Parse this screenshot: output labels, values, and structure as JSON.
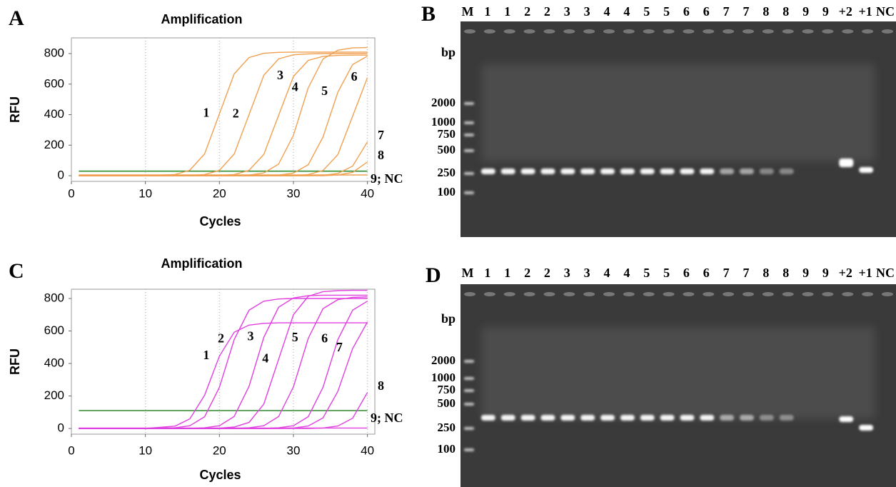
{
  "chart_data": [
    {
      "type": "line",
      "panel": "A",
      "title": "Amplification",
      "xlabel": "Cycles",
      "ylabel": "RFU",
      "x": [
        1,
        10,
        14,
        16,
        18,
        20,
        22,
        24,
        26,
        28,
        30,
        32,
        34,
        36,
        38,
        40
      ],
      "series": [
        {
          "name": "1",
          "color": "#f0a050",
          "values": [
            0,
            0,
            8,
            36,
            143,
            405,
            667,
            774,
            802,
            808,
            810,
            810,
            810,
            810,
            810,
            810
          ]
        },
        {
          "name": "2",
          "color": "#f0a050",
          "values": [
            0,
            0,
            0,
            2,
            8,
            35,
            142,
            400,
            658,
            765,
            792,
            798,
            800,
            800,
            800,
            800
          ]
        },
        {
          "name": "3",
          "color": "#f0a050",
          "values": [
            0,
            0,
            0,
            0,
            0,
            2,
            8,
            35,
            140,
            395,
            650,
            755,
            782,
            788,
            790,
            790
          ]
        },
        {
          "name": "4",
          "color": "#f0a050",
          "values": [
            0,
            0,
            0,
            0,
            0,
            0,
            1,
            4,
            18,
            76,
            265,
            575,
            764,
            822,
            837,
            840
          ]
        },
        {
          "name": "5",
          "color": "#f0a050",
          "values": [
            0,
            0,
            0,
            0,
            0,
            0,
            0,
            0,
            0,
            4,
            17,
            72,
            253,
            547,
            728,
            783
          ]
        },
        {
          "name": "6",
          "color": "#f0a050",
          "values": [
            0,
            0,
            0,
            0,
            0,
            0,
            0,
            0,
            0,
            0,
            0,
            8,
            34,
            138,
            390,
            642
          ]
        },
        {
          "name": "7",
          "color": "#f0a050",
          "values": [
            0,
            0,
            0,
            0,
            0,
            0,
            0,
            0,
            0,
            0,
            0,
            0,
            3,
            15,
            63,
            221
          ]
        },
        {
          "name": "8",
          "color": "#f0a050",
          "values": [
            0,
            0,
            0,
            0,
            0,
            0,
            0,
            0,
            0,
            0,
            0,
            0,
            0,
            5,
            22,
            90
          ]
        },
        {
          "name": "9; NC",
          "color": "#f0a050",
          "values": [
            5,
            5,
            5,
            5,
            5,
            5,
            5,
            5,
            5,
            5,
            5,
            5,
            5,
            5,
            5,
            5
          ]
        }
      ],
      "threshold": 30,
      "threshold_color": "#2e8b2e",
      "xlim": [
        0,
        41
      ],
      "ylim": [
        -37,
        903
      ],
      "xticks": [
        0,
        10,
        20,
        30,
        40
      ],
      "yticks": [
        0,
        200,
        400,
        600,
        800
      ],
      "grid": true
    },
    {
      "type": "line",
      "panel": "C",
      "title": "Amplification",
      "xlabel": "Cycles",
      "ylabel": "RFU",
      "x": [
        1,
        10,
        14,
        16,
        18,
        20,
        22,
        24,
        26,
        28,
        30,
        32,
        34,
        36,
        38,
        40
      ],
      "series": [
        {
          "name": "1",
          "color": "#e040e0",
          "values": [
            0,
            0,
            14,
            59,
            205,
            445,
            592,
            636,
            647,
            650,
            650,
            650,
            650,
            650,
            650,
            650
          ]
        },
        {
          "name": "2",
          "color": "#e040e0",
          "values": [
            0,
            0,
            4,
            17,
            72,
            253,
            547,
            728,
            783,
            797,
            800,
            800,
            800,
            800,
            800,
            800
          ]
        },
        {
          "name": "3",
          "color": "#e040e0",
          "values": [
            0,
            0,
            0,
            0,
            4,
            17,
            74,
            259,
            561,
            746,
            803,
            817,
            820,
            820,
            820,
            820
          ]
        },
        {
          "name": "4",
          "color": "#e040e0",
          "values": [
            0,
            0,
            0,
            0,
            0,
            2,
            9,
            37,
            150,
            425,
            700,
            813,
            842,
            848,
            850,
            850
          ]
        },
        {
          "name": "5",
          "color": "#e040e0",
          "values": [
            0,
            0,
            0,
            0,
            0,
            0,
            0,
            4,
            17,
            73,
            256,
            554,
            737,
            793,
            807,
            810
          ]
        },
        {
          "name": "6",
          "color": "#e040e0",
          "values": [
            0,
            0,
            0,
            0,
            0,
            0,
            0,
            0,
            0,
            4,
            17,
            72,
            253,
            547,
            728,
            783
          ]
        },
        {
          "name": "7",
          "color": "#e040e0",
          "values": [
            0,
            0,
            0,
            0,
            0,
            0,
            0,
            0,
            0,
            0,
            3,
            15,
            65,
            228,
            492,
            655
          ]
        },
        {
          "name": "8",
          "color": "#e040e0",
          "values": [
            0,
            0,
            0,
            0,
            0,
            0,
            0,
            0,
            0,
            0,
            0,
            0,
            3,
            15,
            63,
            221
          ]
        },
        {
          "name": "9; NC",
          "color": "#e040e0",
          "values": [
            3,
            3,
            3,
            3,
            3,
            3,
            3,
            3,
            3,
            3,
            3,
            3,
            3,
            3,
            3,
            3
          ]
        }
      ],
      "threshold": 110,
      "threshold_color": "#2e8b2e",
      "xlim": [
        0,
        41
      ],
      "ylim": [
        -35,
        857
      ],
      "xticks": [
        0,
        10,
        20,
        30,
        40
      ],
      "yticks": [
        0,
        200,
        400,
        600,
        800
      ],
      "grid": true
    }
  ],
  "gels": [
    {
      "panel": "B",
      "unit": "bp",
      "lanes": [
        "M",
        "1",
        "1",
        "2",
        "2",
        "3",
        "3",
        "4",
        "4",
        "5",
        "5",
        "6",
        "6",
        "7",
        "7",
        "8",
        "8",
        "9",
        "9",
        "+2",
        "+1",
        "NC"
      ],
      "markers": [
        2000,
        1000,
        750,
        500,
        250,
        100
      ]
    },
    {
      "panel": "D",
      "unit": "bp",
      "lanes": [
        "M",
        "1",
        "1",
        "2",
        "2",
        "3",
        "3",
        "4",
        "4",
        "5",
        "5",
        "6",
        "6",
        "7",
        "7",
        "8",
        "8",
        "9",
        "9",
        "+2",
        "+1",
        "NC"
      ],
      "markers": [
        2000,
        1000,
        750,
        500,
        250,
        100
      ]
    }
  ]
}
